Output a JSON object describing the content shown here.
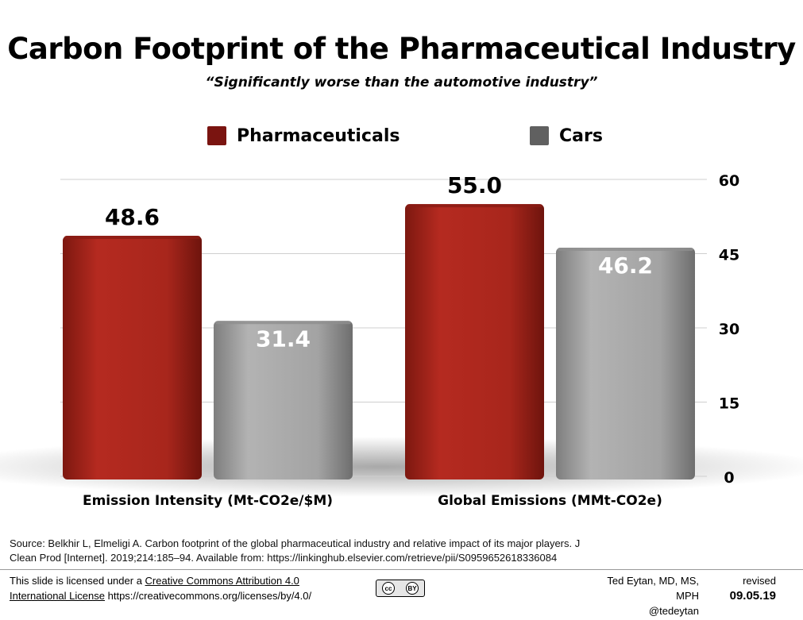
{
  "header": {
    "title": "Carbon Footprint of the Pharmaceutical Industry",
    "subtitle": "“Significantly worse than the automotive industry”"
  },
  "legend": [
    {
      "label": "Pharmaceuticals",
      "color": "#7a1410"
    },
    {
      "label": "Cars",
      "color": "#606060"
    }
  ],
  "chart_data": {
    "type": "bar",
    "categories": [
      "Emission Intensity (Mt-CO2e/$M)",
      "Global Emissions (MMt-CO2e)"
    ],
    "series": [
      {
        "name": "Pharmaceuticals",
        "values": [
          48.6,
          55.0
        ],
        "labels": [
          "48.6",
          "55.0"
        ],
        "color": "#b52a20"
      },
      {
        "name": "Cars",
        "values": [
          31.4,
          46.2
        ],
        "labels": [
          "31.4",
          "46.2"
        ],
        "color": "#a6a6a6"
      }
    ],
    "yticks": [
      "0",
      "15",
      "30",
      "45",
      "60"
    ],
    "ylim": [
      0,
      60
    ],
    "grid": true,
    "legend_position": "top"
  },
  "footer": {
    "source_line1": "Source: Belkhir L, Elmeligi A. Carbon footprint of the global pharmaceutical industry and relative impact of its major players. J",
    "source_line2": "Clean Prod [Internet]. 2019;214:185–94. Available from: https://linkinghub.elsevier.com/retrieve/pii/S0959652618336084",
    "license_prefix": "This slide is licensed under a",
    "license_link_1": "Creative Commons Attribution 4.0",
    "license_link_2": "International License",
    "license_url": "https://creativecommons.org/licenses/by/4.0/",
    "cc_badge_text": "cc",
    "cc_by_text": "BY",
    "author": "Ted Eytan, MD, MS, MPH",
    "handle": "@tedeytan",
    "revised_label": "revised",
    "revised_date": "09.05.19"
  }
}
